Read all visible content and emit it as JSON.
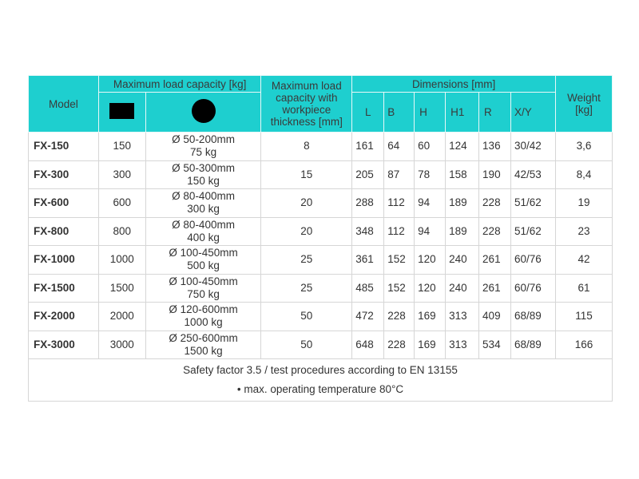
{
  "headers": {
    "model": "Model",
    "max_load": "Maximum load capacity [kg]",
    "thickness": "Maximum load capacity with workpiece thickness [mm]",
    "dimensions": "Dimensions [mm]",
    "weight": "Weight [kg]",
    "dim_cols": [
      "L",
      "B",
      "H",
      "H1",
      "R",
      "X/Y"
    ],
    "icons": [
      "rectangle-profile",
      "round-profile"
    ]
  },
  "rows": [
    {
      "model": "FX-150",
      "flat": "150",
      "round": "Ø 50-200mm",
      "round_kg": "75 kg",
      "thick": "8",
      "dims": [
        "161",
        "64",
        "60",
        "124",
        "136",
        "30/42"
      ],
      "weight": "3,6"
    },
    {
      "model": "FX-300",
      "flat": "300",
      "round": "Ø 50-300mm",
      "round_kg": "150 kg",
      "thick": "15",
      "dims": [
        "205",
        "87",
        "78",
        "158",
        "190",
        "42/53"
      ],
      "weight": "8,4"
    },
    {
      "model": "FX-600",
      "flat": "600",
      "round": "Ø 80-400mm",
      "round_kg": "300 kg",
      "thick": "20",
      "dims": [
        "288",
        "112",
        "94",
        "189",
        "228",
        "51/62"
      ],
      "weight": "19"
    },
    {
      "model": "FX-800",
      "flat": "800",
      "round": "Ø 80-400mm",
      "round_kg": "400 kg",
      "thick": "20",
      "dims": [
        "348",
        "112",
        "94",
        "189",
        "228",
        "51/62"
      ],
      "weight": "23"
    },
    {
      "model": "FX-1000",
      "flat": "1000",
      "round": "Ø 100-450mm",
      "round_kg": "500 kg",
      "thick": "25",
      "dims": [
        "361",
        "152",
        "120",
        "240",
        "261",
        "60/76"
      ],
      "weight": "42"
    },
    {
      "model": "FX-1500",
      "flat": "1500",
      "round": "Ø 100-450mm",
      "round_kg": "750 kg",
      "thick": "25",
      "dims": [
        "485",
        "152",
        "120",
        "240",
        "261",
        "60/76"
      ],
      "weight": "61"
    },
    {
      "model": "FX-2000",
      "flat": "2000",
      "round": "Ø 120-600mm",
      "round_kg": "1000 kg",
      "thick": "50",
      "dims": [
        "472",
        "228",
        "169",
        "313",
        "409",
        "68/89"
      ],
      "weight": "115"
    },
    {
      "model": "FX-3000",
      "flat": "3000",
      "round": "Ø 250-600mm",
      "round_kg": "1500 kg",
      "thick": "50",
      "dims": [
        "648",
        "228",
        "169",
        "313",
        "534",
        "68/89"
      ],
      "weight": "166"
    }
  ],
  "footer": {
    "line1": "Safety factor 3.5 / test procedures according to EN 13155",
    "line2": "• max. operating temperature 80°C"
  },
  "colors": {
    "header_bg": "#1ecfcf"
  }
}
